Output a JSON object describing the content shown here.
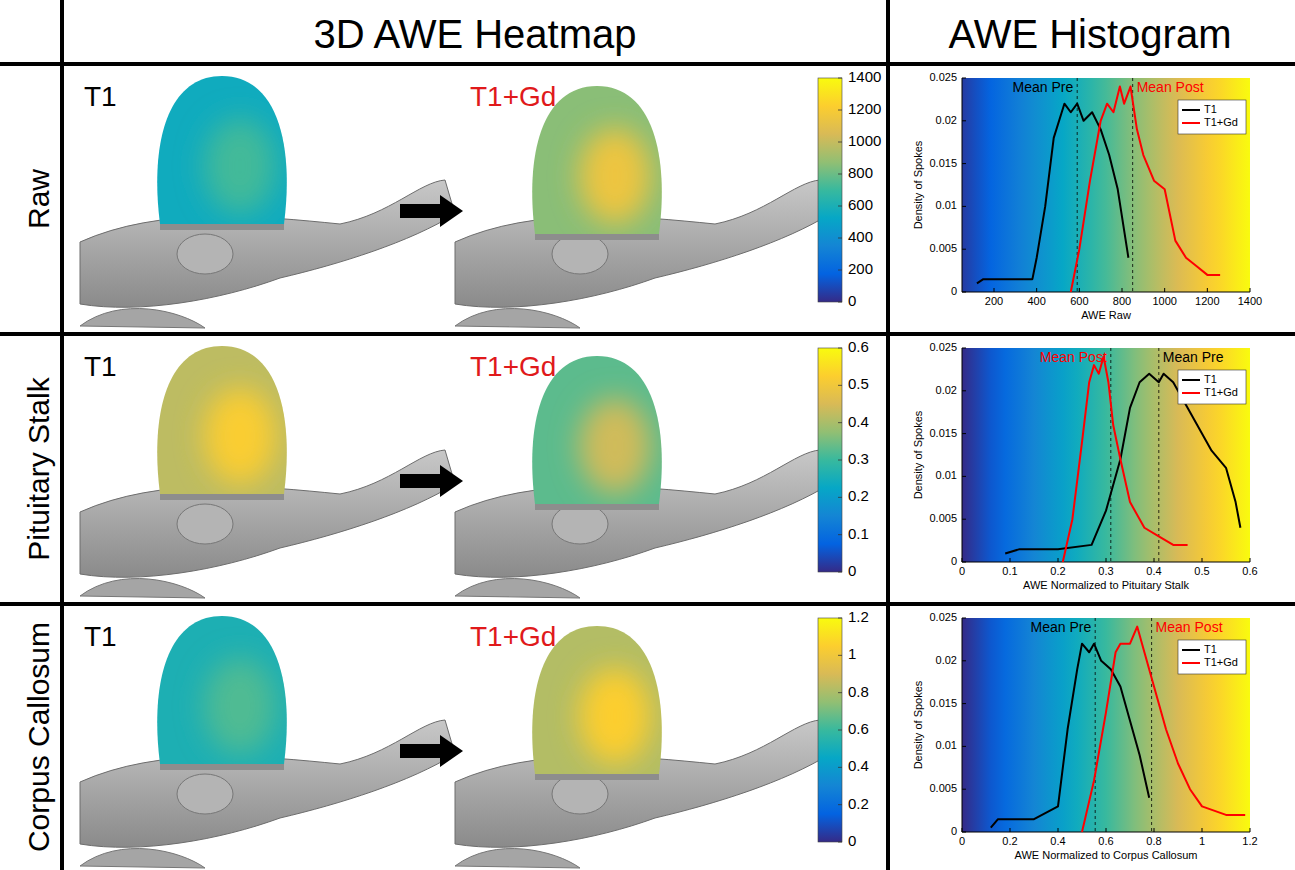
{
  "header": {
    "columns": [
      "3D AWE Heatmap",
      "AWE Histogram"
    ]
  },
  "rows": [
    {
      "label": "Raw",
      "pre_label": "T1",
      "post_label": "T1+Gd",
      "colorbar": {
        "range": [
          0,
          1400
        ],
        "ticks": [
          0,
          200,
          400,
          600,
          800,
          1000,
          1200,
          1400
        ]
      },
      "heatmap": {
        "pre": {
          "base": 560,
          "peak": 720
        },
        "post": {
          "base": 860,
          "peak": 1150
        }
      }
    },
    {
      "label": "Pituitary Stalk",
      "pre_label": "T1",
      "post_label": "T1+Gd",
      "colorbar": {
        "range": [
          0,
          0.6
        ],
        "ticks": [
          0,
          0.1,
          0.2,
          0.3,
          0.4,
          0.5,
          0.6
        ]
      },
      "heatmap": {
        "pre": {
          "base": 0.42,
          "peak": 0.52
        },
        "post": {
          "base": 0.33,
          "peak": 0.44
        }
      }
    },
    {
      "label": "Corpus Callosum",
      "pre_label": "T1",
      "post_label": "T1+Gd",
      "colorbar": {
        "range": [
          0,
          1.2
        ],
        "ticks": [
          0,
          0.2,
          0.4,
          0.6,
          0.8,
          1,
          1.2
        ]
      },
      "heatmap": {
        "pre": {
          "base": 0.52,
          "peak": 0.64
        },
        "post": {
          "base": 0.82,
          "peak": 1.05
        }
      }
    }
  ],
  "chart_data": [
    {
      "type": "line",
      "xlabel": "AWE Raw",
      "ylabel": "Density of Spokes",
      "xlim": [
        50,
        1400
      ],
      "xticks": [
        200,
        400,
        600,
        800,
        1000,
        1200,
        1400
      ],
      "ylim": [
        0,
        0.025
      ],
      "yticks": [
        0,
        0.005,
        0.01,
        0.015,
        0.02,
        0.025
      ],
      "legend": "upper right",
      "series": [
        {
          "name": "T1",
          "color": "#000000",
          "x": [
            120,
            150,
            250,
            380,
            400,
            440,
            480,
            530,
            560,
            590,
            620,
            660,
            700,
            740,
            780,
            830
          ],
          "values": [
            0.001,
            0.0015,
            0.0015,
            0.0015,
            0.004,
            0.01,
            0.018,
            0.022,
            0.021,
            0.022,
            0.02,
            0.021,
            0.019,
            0.016,
            0.012,
            0.004
          ]
        },
        {
          "name": "T1+Gd",
          "color": "#ff0000",
          "x": [
            560,
            600,
            650,
            700,
            730,
            760,
            790,
            810,
            840,
            870,
            900,
            950,
            1000,
            1050,
            1100,
            1150,
            1200,
            1260
          ],
          "values": [
            0,
            0.005,
            0.013,
            0.02,
            0.022,
            0.021,
            0.024,
            0.022,
            0.024,
            0.019,
            0.016,
            0.013,
            0.012,
            0.006,
            0.004,
            0.003,
            0.002,
            0.002
          ]
        }
      ],
      "annotations": [
        {
          "text": "Mean Pre",
          "x": 590,
          "color": "#000000"
        },
        {
          "text": "Mean Post",
          "x": 850,
          "color": "#ff0000"
        }
      ]
    },
    {
      "type": "line",
      "xlabel": "AWE Normalized to Pituitary Stalk",
      "ylabel": "Density of Spokes",
      "xlim": [
        0,
        0.6
      ],
      "xticks": [
        0,
        0.1,
        0.2,
        0.3,
        0.4,
        0.5,
        0.6
      ],
      "ylim": [
        0,
        0.025
      ],
      "yticks": [
        0,
        0.005,
        0.01,
        0.015,
        0.02,
        0.025
      ],
      "legend": "upper right",
      "series": [
        {
          "name": "T1",
          "color": "#000000",
          "x": [
            0.09,
            0.12,
            0.2,
            0.27,
            0.3,
            0.33,
            0.35,
            0.37,
            0.39,
            0.41,
            0.42,
            0.44,
            0.46,
            0.49,
            0.52,
            0.55,
            0.57,
            0.58
          ],
          "values": [
            0.001,
            0.0015,
            0.0015,
            0.002,
            0.006,
            0.012,
            0.018,
            0.021,
            0.022,
            0.021,
            0.022,
            0.021,
            0.019,
            0.016,
            0.013,
            0.011,
            0.007,
            0.004
          ]
        },
        {
          "name": "T1+Gd",
          "color": "#ff0000",
          "x": [
            0.21,
            0.23,
            0.25,
            0.265,
            0.275,
            0.285,
            0.295,
            0.305,
            0.315,
            0.33,
            0.35,
            0.38,
            0.41,
            0.44,
            0.47
          ],
          "values": [
            0,
            0.005,
            0.014,
            0.021,
            0.023,
            0.022,
            0.024,
            0.021,
            0.016,
            0.012,
            0.007,
            0.004,
            0.003,
            0.002,
            0.002
          ]
        }
      ],
      "annotations": [
        {
          "text": "Mean Post",
          "x": 0.31,
          "color": "#ff0000"
        },
        {
          "text": "Mean Pre",
          "x": 0.41,
          "color": "#000000"
        }
      ]
    },
    {
      "type": "line",
      "xlabel": "AWE Normalized to Corpus Callosum",
      "ylabel": "Density of Spokes",
      "xlim": [
        0,
        1.2
      ],
      "xticks": [
        0,
        0.2,
        0.4,
        0.6,
        0.8,
        1,
        1.2
      ],
      "ylim": [
        0,
        0.025
      ],
      "yticks": [
        0,
        0.005,
        0.01,
        0.015,
        0.02,
        0.025
      ],
      "legend": "upper right",
      "series": [
        {
          "name": "T1",
          "color": "#000000",
          "x": [
            0.12,
            0.15,
            0.3,
            0.4,
            0.44,
            0.48,
            0.5,
            0.53,
            0.55,
            0.58,
            0.62,
            0.66,
            0.7,
            0.74,
            0.78
          ],
          "values": [
            0.0005,
            0.0015,
            0.0015,
            0.003,
            0.012,
            0.019,
            0.022,
            0.021,
            0.022,
            0.02,
            0.019,
            0.017,
            0.013,
            0.009,
            0.004
          ]
        },
        {
          "name": "T1+Gd",
          "color": "#ff0000",
          "x": [
            0.5,
            0.55,
            0.6,
            0.64,
            0.66,
            0.7,
            0.73,
            0.76,
            0.8,
            0.85,
            0.9,
            0.95,
            1,
            1.1,
            1.18
          ],
          "values": [
            0,
            0.006,
            0.014,
            0.021,
            0.022,
            0.022,
            0.024,
            0.021,
            0.017,
            0.012,
            0.008,
            0.005,
            0.003,
            0.002,
            0.002
          ]
        }
      ],
      "annotations": [
        {
          "text": "Mean Pre",
          "x": 0.555,
          "color": "#000000"
        },
        {
          "text": "Mean Post",
          "x": 0.79,
          "color": "#ff0000"
        }
      ]
    }
  ]
}
